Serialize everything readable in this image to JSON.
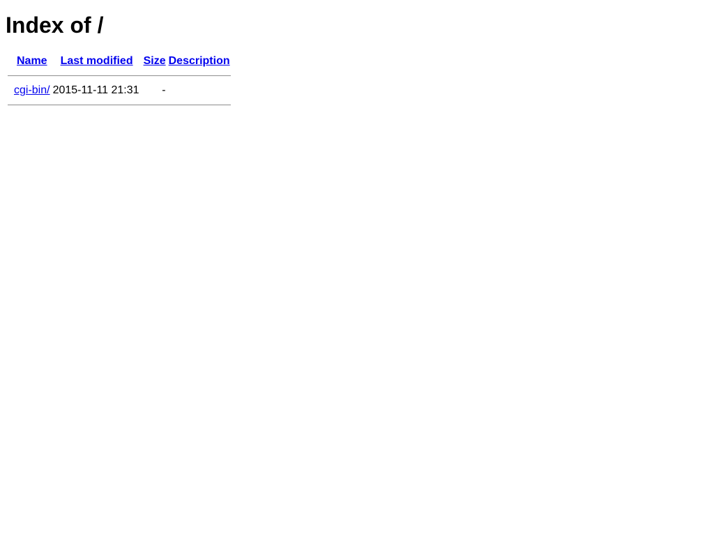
{
  "page": {
    "title": "Index of /"
  },
  "table": {
    "headers": [
      "Name",
      "Last modified",
      "Size",
      "Description"
    ],
    "rows": [
      {
        "name": "cgi-bin/",
        "last_modified": "2015-11-11 21:31",
        "size": "-",
        "description": ""
      }
    ]
  },
  "colors": {
    "link": "#0000ee",
    "rule": "#9a9a9a"
  }
}
